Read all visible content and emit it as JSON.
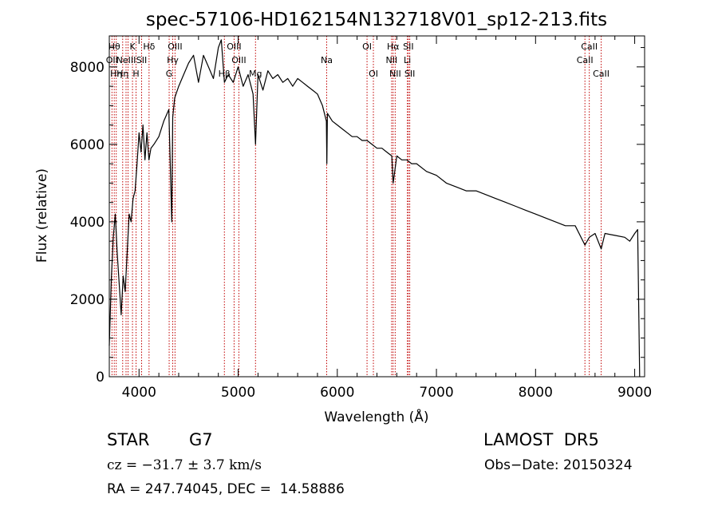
{
  "chart_data": {
    "type": "line",
    "title": "spec-57106-HD162154N132718V01_sp12-213.fits",
    "xlabel": "Wavelength (Å)",
    "ylabel": "Flux (relative)",
    "xlim": [
      3700,
      9100
    ],
    "ylim": [
      0,
      8800
    ],
    "x_ticks": [
      4000,
      5000,
      6000,
      7000,
      8000,
      9000
    ],
    "y_ticks": [
      0,
      2000,
      4000,
      6000,
      8000
    ],
    "grid": false,
    "series": [
      {
        "x": [
          3700,
          3720,
          3740,
          3760,
          3780,
          3800,
          3820,
          3840,
          3860,
          3880,
          3900,
          3920,
          3940,
          3960,
          3980,
          4000,
          4020,
          4040,
          4060,
          4080,
          4100,
          4120,
          4150,
          4200,
          4250,
          4300,
          4330,
          4340,
          4360,
          4400,
          4450,
          4500,
          4550,
          4600,
          4650,
          4700,
          4750,
          4800,
          4830,
          4861,
          4900,
          4950,
          5000,
          5050,
          5100,
          5150,
          5175,
          5200,
          5250,
          5300,
          5350,
          5400,
          5450,
          5500,
          5550,
          5600,
          5650,
          5700,
          5750,
          5800,
          5850,
          5890,
          5895,
          5900,
          5950,
          6000,
          6050,
          6100,
          6150,
          6200,
          6250,
          6300,
          6350,
          6400,
          6450,
          6500,
          6550,
          6563,
          6600,
          6650,
          6700,
          6750,
          6800,
          6900,
          7000,
          7100,
          7200,
          7300,
          7400,
          7500,
          7600,
          7700,
          7800,
          7900,
          8000,
          8100,
          8200,
          8300,
          8400,
          8498,
          8542,
          8600,
          8662,
          8700,
          8800,
          8900,
          8950,
          9000,
          9030,
          9050
        ],
        "y": [
          800,
          2500,
          3600,
          4200,
          3200,
          2400,
          1600,
          2600,
          2200,
          3200,
          4200,
          4000,
          4600,
          4800,
          5500,
          6300,
          5800,
          6500,
          5600,
          6300,
          5600,
          5900,
          6000,
          6200,
          6600,
          6900,
          4000,
          6700,
          7200,
          7500,
          7800,
          8100,
          8300,
          7600,
          8300,
          8000,
          7700,
          8500,
          8700,
          7600,
          7800,
          7600,
          8000,
          7500,
          7800,
          7300,
          6000,
          7800,
          7400,
          7900,
          7700,
          7800,
          7600,
          7700,
          7500,
          7700,
          7600,
          7500,
          7400,
          7300,
          7000,
          6600,
          5500,
          6800,
          6600,
          6500,
          6400,
          6300,
          6200,
          6200,
          6100,
          6100,
          6000,
          5900,
          5900,
          5800,
          5700,
          5000,
          5700,
          5600,
          5600,
          5500,
          5500,
          5300,
          5200,
          5000,
          4900,
          4800,
          4800,
          4700,
          4600,
          4500,
          4400,
          4300,
          4200,
          4100,
          4000,
          3900,
          3900,
          3400,
          3600,
          3700,
          3300,
          3700,
          3650,
          3600,
          3500,
          3700,
          3800,
          0
        ]
      }
    ],
    "lines": [
      {
        "wl": 3727,
        "labels": [
          {
            "text": "OII",
            "row": 1
          }
        ]
      },
      {
        "wl": 3750,
        "labels": [
          {
            "text": "Hθ",
            "row": 0
          }
        ]
      },
      {
        "wl": 3770,
        "labels": [
          {
            "text": "Hη",
            "row": 2
          }
        ]
      },
      {
        "wl": 3835,
        "labels": [
          {
            "text": "Hη",
            "row": 2
          }
        ]
      },
      {
        "wl": 3869,
        "labels": [
          {
            "text": "NeIII",
            "row": 1
          }
        ]
      },
      {
        "wl": 3889,
        "labels": []
      },
      {
        "wl": 3934,
        "labels": [
          {
            "text": "K",
            "row": 0
          }
        ]
      },
      {
        "wl": 3970,
        "labels": [
          {
            "text": "H",
            "row": 2
          }
        ]
      },
      {
        "wl": 4026,
        "labels": [
          {
            "text": "SII",
            "row": 1
          }
        ]
      },
      {
        "wl": 4101,
        "labels": [
          {
            "text": "Hδ",
            "row": 0
          }
        ]
      },
      {
        "wl": 4304,
        "labels": [
          {
            "text": "G",
            "row": 2
          }
        ]
      },
      {
        "wl": 4340,
        "labels": [
          {
            "text": "Hγ",
            "row": 1
          }
        ]
      },
      {
        "wl": 4363,
        "labels": [
          {
            "text": "OIII",
            "row": 0
          }
        ]
      },
      {
        "wl": 4861,
        "labels": [
          {
            "text": "Hβ",
            "row": 2
          }
        ]
      },
      {
        "wl": 4959,
        "labels": [
          {
            "text": "OIII",
            "row": 0
          }
        ]
      },
      {
        "wl": 5007,
        "labels": [
          {
            "text": "OIII",
            "row": 1
          }
        ]
      },
      {
        "wl": 5175,
        "labels": [
          {
            "text": "Mg",
            "row": 2
          }
        ]
      },
      {
        "wl": 5893,
        "labels": [
          {
            "text": "Na",
            "row": 1
          }
        ]
      },
      {
        "wl": 6300,
        "labels": [
          {
            "text": "OI",
            "row": 0
          }
        ]
      },
      {
        "wl": 6364,
        "labels": [
          {
            "text": "OI",
            "row": 2
          }
        ]
      },
      {
        "wl": 6548,
        "labels": [
          {
            "text": "NII",
            "row": 1
          }
        ]
      },
      {
        "wl": 6563,
        "labels": [
          {
            "text": "Hα",
            "row": 0
          }
        ]
      },
      {
        "wl": 6584,
        "labels": [
          {
            "text": "NII",
            "row": 2
          }
        ]
      },
      {
        "wl": 6707,
        "labels": [
          {
            "text": "Li",
            "row": 1
          }
        ]
      },
      {
        "wl": 6717,
        "labels": [
          {
            "text": "SII",
            "row": 0
          }
        ]
      },
      {
        "wl": 6731,
        "labels": [
          {
            "text": "SII",
            "row": 2
          }
        ]
      },
      {
        "wl": 8498,
        "labels": [
          {
            "text": "CaII",
            "row": 1
          }
        ]
      },
      {
        "wl": 8542,
        "labels": [
          {
            "text": "CaII",
            "row": 0
          }
        ]
      },
      {
        "wl": 8662,
        "labels": [
          {
            "text": "CaII",
            "row": 2
          }
        ]
      }
    ],
    "colors": {
      "spectrum": "#000000",
      "lines": "#c00000",
      "axes": "#000000"
    }
  },
  "info": {
    "object_type": "STAR",
    "subclass": "G7",
    "survey": "LAMOST  DR5",
    "redshift": "cz = −31.7 ± 3.7 km/s",
    "obs_date": "Obs−Date: 20150324",
    "coords": "RA = 247.74045, DEC =  14.58886"
  }
}
